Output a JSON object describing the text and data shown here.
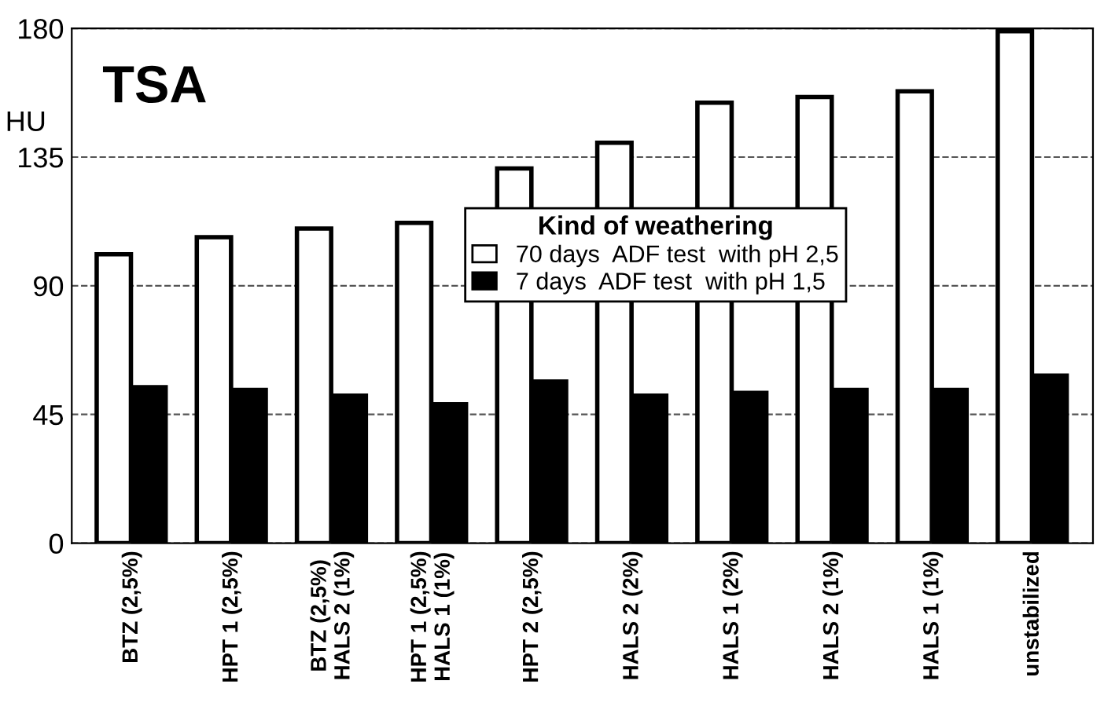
{
  "chart_data": {
    "type": "bar",
    "title": "TSA",
    "ylabel": "HU",
    "legend_title": "Kind of weathering",
    "legend": "right",
    "grid": "y",
    "categories": [
      "BTZ (2,5%)",
      "HPT 1 (2,5%)",
      "BTZ (2,5%)\nHALS 2 (1%)",
      "HPT 1 (2,5%)\nHALS 1 (1%)",
      "HPT 2 (2,5%)",
      "HALS 2 (2%)",
      "HALS 1 (2%)",
      "HALS 2 (1%)",
      "HALS 1 (1%)",
      "unstabilized"
    ],
    "series": [
      {
        "name": "70 days  ADF test  with pH 2,5",
        "color": "#ffffff",
        "values": [
          101,
          107,
          110,
          112,
          131,
          140,
          154,
          156,
          158,
          179
        ]
      },
      {
        "name": "7 days  ADF test  with pH 1,5",
        "color": "#000000",
        "values": [
          55,
          54,
          52,
          49,
          57,
          52,
          53,
          54,
          54,
          59
        ]
      }
    ],
    "ylim": [
      0,
      180
    ],
    "yticks": [
      0,
      45,
      90,
      135,
      180
    ]
  }
}
